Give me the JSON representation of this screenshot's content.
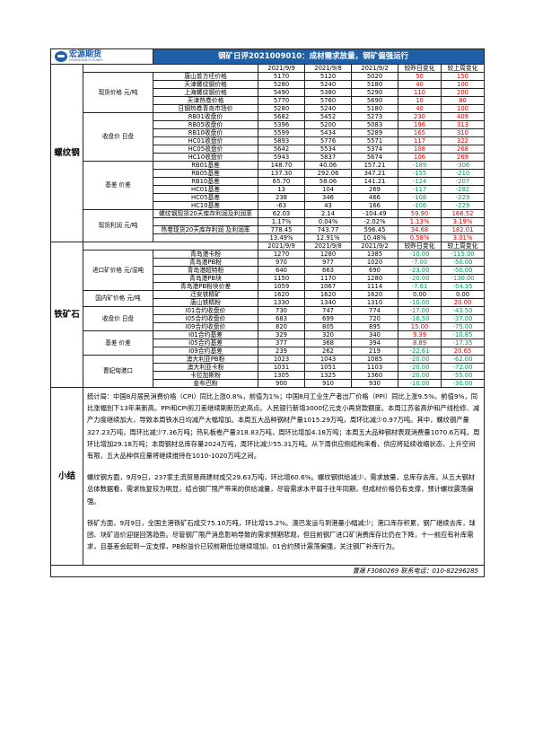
{
  "header": {
    "logo_text": "宏源期货",
    "logo_sub": "HONGYUAN FUTURES",
    "title": "钢矿日评2021009010：成材需求放量，钢矿偏强运行"
  },
  "colors": {
    "header_bg": "#1f5fa6",
    "up": "#e00000",
    "down": "#00a050"
  },
  "rebar": {
    "section": "螺纹钢",
    "columns": [
      "2021/9/9",
      "2021/9/8",
      "2021/9/2",
      "较昨日变化",
      "较上周变化"
    ],
    "groups": [
      {
        "label": "现货价格 元/吨",
        "rows": [
          {
            "name": "唐山普方坯价格",
            "v": [
              "5170",
              "5120",
              "5020",
              "50",
              "150"
            ],
            "c": [
              "red",
              "red"
            ]
          },
          {
            "name": "天津螺纹钢价格",
            "v": [
              "5280",
              "5240",
              "5180",
              "40",
              "100"
            ],
            "c": [
              "red",
              "red"
            ]
          },
          {
            "name": "上海螺纹钢价格",
            "v": [
              "5490",
              "5380",
              "5290",
              "110",
              "200"
            ],
            "c": [
              "red",
              "red"
            ]
          },
          {
            "name": "天津热卷价格",
            "v": [
              "5770",
              "5760",
              "5690",
              "10",
              "80"
            ],
            "c": [
              "red",
              "red"
            ]
          },
          {
            "name": "日钢热卷青岛市场价",
            "v": [
              "5280",
              "5240",
              "5180",
              "40",
              "100"
            ],
            "c": [
              "red",
              "red"
            ]
          }
        ]
      },
      {
        "label": "收盘价 日盘",
        "rows": [
          {
            "name": "RB01收盘价",
            "v": [
              "5682",
              "5452",
              "5273",
              "230",
              "409"
            ],
            "c": [
              "red",
              "red"
            ]
          },
          {
            "name": "RB05收盘价",
            "v": [
              "5396",
              "5200",
              "5083",
              "196",
              "313"
            ],
            "c": [
              "red",
              "red"
            ]
          },
          {
            "name": "RB10收盘价",
            "v": [
              "5599",
              "5434",
              "5289",
              "165",
              "310"
            ],
            "c": [
              "red",
              "red"
            ]
          },
          {
            "name": "HC01收盘价",
            "v": [
              "5893",
              "5776",
              "5571",
              "117",
              "322"
            ],
            "c": [
              "red",
              "red"
            ]
          },
          {
            "name": "HC05收盘价",
            "v": [
              "5642",
              "5534",
              "5374",
              "108",
              "268"
            ],
            "c": [
              "red",
              "red"
            ]
          },
          {
            "name": "HC10收盘价",
            "v": [
              "5943",
              "5837",
              "5674",
              "106",
              "269"
            ],
            "c": [
              "red",
              "red"
            ]
          }
        ]
      },
      {
        "label": "基差 价差",
        "rows": [
          {
            "name": "RB01基差",
            "v": [
              "148.70",
              "40.06",
              "157.21",
              "-189",
              "-306"
            ],
            "c": [
              "green",
              "green"
            ]
          },
          {
            "name": "RB05基差",
            "v": [
              "137.30",
              "292.06",
              "347.21",
              "-155",
              "-210"
            ],
            "c": [
              "green",
              "green"
            ]
          },
          {
            "name": "RB10基差",
            "v": [
              "65.70",
              "58.06",
              "141.21",
              "-124",
              "-207"
            ],
            "c": [
              "green",
              "green"
            ]
          },
          {
            "name": "HC01基差",
            "v": [
              "13",
              "104",
              "269",
              "-117",
              "-282"
            ],
            "c": [
              "green",
              "green"
            ]
          },
          {
            "name": "HC05基差",
            "v": [
              "238",
              "346",
              "466",
              "-108",
              "-229"
            ],
            "c": [
              "green",
              "green"
            ]
          },
          {
            "name": "HC10基差",
            "v": [
              "-63",
              "43",
              "166",
              "-106",
              "-229"
            ],
            "c": [
              "green",
              "green"
            ]
          }
        ]
      },
      {
        "label": "现货利润 元/吨",
        "rows": [
          {
            "name": "螺纹钢现货20天库存利润及利润率",
            "v": [
              "62.03",
              "2.14",
              "-104.49",
              "59.90",
              "166.52"
            ],
            "c": [
              "red",
              "red"
            ]
          },
          {
            "name": "",
            "v": [
              "1.17%",
              "0.04%",
              "-2.02%",
              "1.13%",
              "3.19%"
            ],
            "c": [
              "red",
              "red"
            ]
          },
          {
            "name": "热卷现货20天库存利润 及利润率",
            "v": [
              "778.45",
              "743.77",
              "596.45",
              "34.68",
              "182.01"
            ],
            "c": [
              "red",
              "red"
            ]
          },
          {
            "name": "",
            "v": [
              "13.49%",
              "12.91%",
              "10.48%",
              "0.58%",
              "3.01%"
            ],
            "c": [
              "red",
              "red"
            ]
          }
        ]
      }
    ]
  },
  "ore": {
    "section": "铁矿石",
    "columns": [
      "2021/9/9",
      "2021/9/8",
      "2021/9/2",
      "较昨日变化",
      "较上周变化"
    ],
    "groups": [
      {
        "label": "进口矿价格 元/湿吨",
        "rows": [
          {
            "name": "青岛港卡粉",
            "v": [
              "1270",
              "1280",
              "1385",
              "-10.00",
              "-115.00"
            ],
            "c": [
              "green",
              "green"
            ]
          },
          {
            "name": "青岛港PB粉",
            "v": [
              "970",
              "977",
              "1020",
              "-7.00",
              "-50.00"
            ],
            "c": [
              "green",
              "green"
            ]
          },
          {
            "name": "青岛港超特粉",
            "v": [
              "640",
              "663",
              "690",
              "-23.00",
              "-50.00"
            ],
            "c": [
              "green",
              "green"
            ]
          },
          {
            "name": "青岛港PB块",
            "v": [
              "1150",
              "1170",
              "1280",
              "-20.00",
              "-130.00"
            ],
            "c": [
              "green",
              "green"
            ]
          },
          {
            "name": "青岛港PB粉块价差",
            "v": [
              "1059",
              "1067",
              "1114",
              "-7.61",
              "-54.35"
            ],
            "c": [
              "green",
              "green"
            ]
          }
        ]
      },
      {
        "label": "国内矿价格 元/吨",
        "rows": [
          {
            "name": "迁安铁精矿",
            "v": [
              "1620",
              "1620",
              "1620",
              "0.00",
              "0.00"
            ],
            "c": [
              "",
              ""
            ]
          },
          {
            "name": "唐山铁精粉",
            "v": [
              "1330",
              "1340",
              "1310",
              "-10.00",
              "20.00"
            ],
            "c": [
              "green",
              "red"
            ]
          }
        ]
      },
      {
        "label": "收盘价 日盘",
        "rows": [
          {
            "name": "I01合约收盘价",
            "v": [
              "730",
              "747",
              "774",
              "-17.00",
              "-43.50"
            ],
            "c": [
              "green",
              "green"
            ]
          },
          {
            "name": "I05合约收盘价",
            "v": [
              "683",
              "699",
              "720",
              "-16.50",
              "-37.00"
            ],
            "c": [
              "green",
              "green"
            ]
          },
          {
            "name": "I09合约收盘价",
            "v": [
              "820",
              "805",
              "895",
              "15.00",
              "-75.00"
            ],
            "c": [
              "red",
              "green"
            ]
          }
        ]
      },
      {
        "label": "基差 价差",
        "rows": [
          {
            "name": "I01合约基差",
            "v": [
              "329",
              "320",
              "340",
              "9.39",
              "-10.85"
            ],
            "c": [
              "red",
              "green"
            ]
          },
          {
            "name": "I05合约基差",
            "v": [
              "377",
              "368",
              "394",
              "8.89",
              "-17.35"
            ],
            "c": [
              "red",
              "green"
            ]
          },
          {
            "name": "I09合约基差",
            "v": [
              "239",
              "262",
              "219",
              "-22.61",
              "20.65"
            ],
            "c": [
              "green",
              "red"
            ]
          }
        ]
      },
      {
        "label": "曹妃甸港口",
        "rows": [
          {
            "name": "澳大利亚PB粉",
            "v": [
              "1023",
              "1043",
              "1085",
              "-20.00",
              "-62.00"
            ],
            "c": [
              "green",
              "green"
            ]
          },
          {
            "name": "澳大利亚卡粉",
            "v": [
              "1031",
              "1051",
              "1103",
              "-20.00",
              "-72.00"
            ],
            "c": [
              "green",
              "green"
            ]
          },
          {
            "name": "卡拉加斯粉",
            "v": [
              "1305",
              "1325",
              "1360",
              "-20.00",
              "-55.00"
            ],
            "c": [
              "green",
              "green"
            ]
          },
          {
            "name": "金布巴粉",
            "v": [
              "900",
              "910",
              "930",
              "-10.00",
              "-30.00"
            ],
            "c": [
              "green",
              "green"
            ]
          }
        ]
      }
    ]
  },
  "summary": {
    "section": "小结",
    "paragraphs": [
      "统计局：中国8月居民消费价格（CPI）同比上涨0.8%，前值为1%；中国8月工业生产者出厂价格（PPI）同比上涨9.5%，前值9%，同比涨幅创下13年来新高。PPI和CPI剪刀差继续刷新历史高点。人民银行新增3000亿元支小再贷款额度。本周江苏省高炉和产线检修、减产力度继续加大，导致本周铁水日均减产大幅增加。本周五大品种钢材产量1015.29万吨，周环比减少0.97万吨。其中，螺纹钢产量327.23万吨，周环比减少7.36万吨；热轧板卷产量318.83万吨，周环比增加4.18万吨；本周五大品种钢材表观消费量1070.6万吨，周环比增加29.18万吨；本周钢材总库存量2024万吨，周环比减少55.31万吨。从下周供应侧结构来看，供应将延续收缩状态，上升空间有限，五大品种供应量将继续维持在1010-1020万吨之间。",
      "螺纹钢方面，9月9日，237家主流贸易商建材成交29.63万吨，环比增60.6%。螺纹钢供给减少，需求放量，总库存去库。从五大钢材总体数据看，需求恢复较为明显，结合钢厂限产带来的供给减量，尽管需求水平弱于往年同期，但成材价格仍有支撑，预计螺纹震荡偏强。",
      "铁矿方面，9月9日，全国主港铁矿石成交75.10万吨，环比增15.2%。澳巴发运与到港量小幅减少；港口库存积累，钢厂继续去库，球团、块矿溢价迎提回落趋势。尽管钢厂限产消息影响导致的需求预期悲观，但目前钢厂进口矿消费库存比仍在下降，十一前应有补库需求，且基差会起到一定支撑，PB粉溢价已较前期低位继续增加，01合约预计震荡偏强，关注钢厂补库行为。"
    ]
  },
  "footer": "曹晟 F3080269 联系电话：010-82296285"
}
